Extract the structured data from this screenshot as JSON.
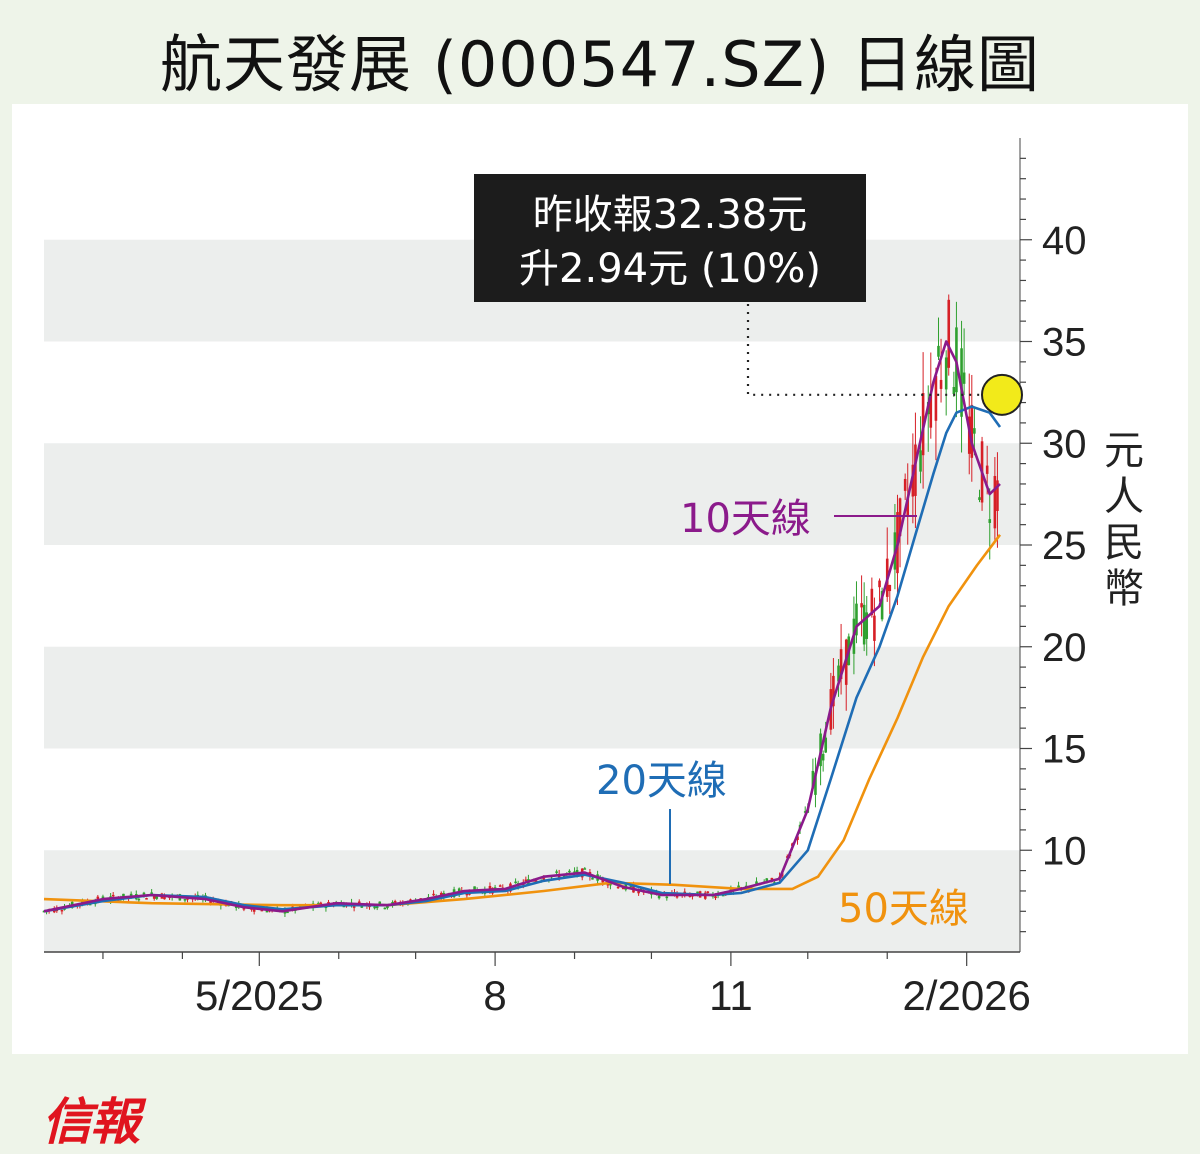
{
  "title": "航天發展 (000547.SZ) 日線圖",
  "publisher_logo": "信報",
  "annotation": {
    "line1": "昨收報32.38元",
    "line2": "升2.94元 (10%)"
  },
  "colors": {
    "up": "#2fa02f",
    "down": "#d61f26",
    "ma10": "#8b1a8b",
    "ma20": "#1f6db5",
    "ma50": "#f0920e",
    "marker": "#f2ea1a",
    "band": "#eceeed",
    "annotation_bg": "#1c1c1c"
  },
  "chart_data": {
    "type": "candlestick-line",
    "ylabel": "元人民幣",
    "yticks": [
      10,
      15,
      20,
      25,
      30,
      35,
      40
    ],
    "ylim": [
      5,
      45
    ],
    "xticks": [
      "5/2025",
      "8",
      "11",
      "2/2026"
    ],
    "last_close": 32.38,
    "change": 2.94,
    "change_pct": 10,
    "series": [
      {
        "name": "10天線",
        "color": "#8b1a8b",
        "points": [
          [
            "2025-02-06",
            7.0
          ],
          [
            "2025-03-01",
            7.6
          ],
          [
            "2025-03-20",
            7.8
          ],
          [
            "2025-04-10",
            7.6
          ],
          [
            "2025-04-25",
            7.2
          ],
          [
            "2025-05-10",
            7.0
          ],
          [
            "2025-05-31",
            7.4
          ],
          [
            "2025-06-20",
            7.3
          ],
          [
            "2025-07-05",
            7.6
          ],
          [
            "2025-07-20",
            8.0
          ],
          [
            "2025-08-05",
            8.1
          ],
          [
            "2025-08-20",
            8.7
          ],
          [
            "2025-09-05",
            8.9
          ],
          [
            "2025-09-20",
            8.2
          ],
          [
            "2025-10-05",
            7.8
          ],
          [
            "2025-10-25",
            7.8
          ],
          [
            "2025-11-05",
            8.1
          ],
          [
            "2025-11-20",
            8.6
          ],
          [
            "2025-12-01",
            12.0
          ],
          [
            "2025-12-10",
            17.0
          ],
          [
            "2025-12-20",
            21.0
          ],
          [
            "2025-12-29",
            22.0
          ],
          [
            "2026-01-05",
            25.0
          ],
          [
            "2026-01-12",
            29.0
          ],
          [
            "2026-01-19",
            33.0
          ],
          [
            "2026-01-24",
            35.0
          ],
          [
            "2026-01-28",
            34.0
          ],
          [
            "2026-02-03",
            30.0
          ],
          [
            "2026-02-10",
            27.5
          ],
          [
            "2026-02-14",
            28.0
          ]
        ]
      },
      {
        "name": "20天線",
        "color": "#1f6db5",
        "points": [
          [
            "2025-02-06",
            7.0
          ],
          [
            "2025-03-01",
            7.5
          ],
          [
            "2025-03-20",
            7.8
          ],
          [
            "2025-04-10",
            7.7
          ],
          [
            "2025-04-25",
            7.3
          ],
          [
            "2025-05-10",
            7.1
          ],
          [
            "2025-05-31",
            7.3
          ],
          [
            "2025-06-20",
            7.3
          ],
          [
            "2025-07-05",
            7.5
          ],
          [
            "2025-07-20",
            7.9
          ],
          [
            "2025-08-05",
            8.0
          ],
          [
            "2025-08-20",
            8.5
          ],
          [
            "2025-09-05",
            8.8
          ],
          [
            "2025-09-20",
            8.4
          ],
          [
            "2025-10-05",
            7.9
          ],
          [
            "2025-10-25",
            7.8
          ],
          [
            "2025-11-05",
            7.9
          ],
          [
            "2025-11-20",
            8.4
          ],
          [
            "2025-12-01",
            10.0
          ],
          [
            "2025-12-10",
            13.5
          ],
          [
            "2025-12-20",
            17.5
          ],
          [
            "2025-12-29",
            20.0
          ],
          [
            "2026-01-05",
            22.5
          ],
          [
            "2026-01-12",
            25.5
          ],
          [
            "2026-01-19",
            28.5
          ],
          [
            "2026-01-24",
            30.5
          ],
          [
            "2026-01-28",
            31.5
          ],
          [
            "2026-02-03",
            31.8
          ],
          [
            "2026-02-10",
            31.5
          ],
          [
            "2026-02-14",
            30.8
          ]
        ]
      },
      {
        "name": "50天線",
        "color": "#f0920e",
        "points": [
          [
            "2025-02-06",
            7.6
          ],
          [
            "2025-03-20",
            7.4
          ],
          [
            "2025-05-10",
            7.3
          ],
          [
            "2025-06-20",
            7.3
          ],
          [
            "2025-07-20",
            7.6
          ],
          [
            "2025-08-20",
            8.0
          ],
          [
            "2025-09-15",
            8.4
          ],
          [
            "2025-10-10",
            8.3
          ],
          [
            "2025-11-05",
            8.1
          ],
          [
            "2025-11-25",
            8.1
          ],
          [
            "2025-12-05",
            8.7
          ],
          [
            "2025-12-15",
            10.5
          ],
          [
            "2025-12-25",
            13.5
          ],
          [
            "2026-01-05",
            16.5
          ],
          [
            "2026-01-15",
            19.5
          ],
          [
            "2026-01-25",
            22.0
          ],
          [
            "2026-02-05",
            24.0
          ],
          [
            "2026-02-14",
            25.5
          ]
        ]
      }
    ],
    "candles_up_color": "#2fa02f",
    "candles_down_color": "#d61f26"
  }
}
